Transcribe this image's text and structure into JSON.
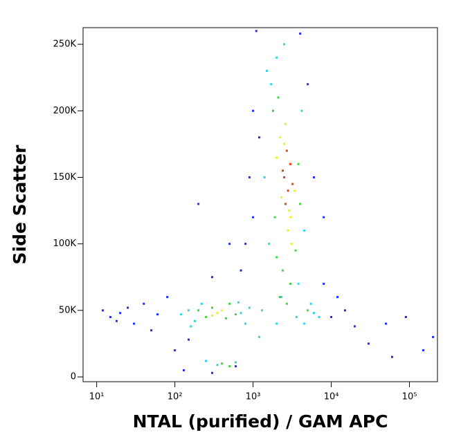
{
  "chart_data": {
    "type": "scatter",
    "x_label": "NTAL (purified) / GAM APC",
    "y_label": "Side Scatter",
    "xscale": "log",
    "xlim": [
      6.7,
      228000
    ],
    "xticks": [
      {
        "value": 10,
        "label": "10¹"
      },
      {
        "value": 100,
        "label": "10²"
      },
      {
        "value": 1000,
        "label": "10³"
      },
      {
        "value": 10000,
        "label": "10⁴"
      },
      {
        "value": 100000,
        "label": "10⁵"
      }
    ],
    "ylim": [
      -3600,
      262500
    ],
    "yticks": [
      0,
      {
        "value": 50000,
        "label": "50K"
      },
      {
        "value": 100000,
        "label": "100K"
      },
      {
        "value": 150000,
        "label": "150K"
      },
      {
        "value": 200000,
        "label": "200K"
      },
      {
        "value": 250000,
        "label": "250K"
      }
    ],
    "series": [
      {
        "color": "#1a2cff",
        "x": [
          15,
          20,
          25,
          30,
          12,
          18,
          40,
          60,
          50,
          80,
          100,
          130,
          300,
          700,
          1000,
          1200,
          900,
          10000,
          15000,
          20000,
          12000,
          8000,
          30000,
          50000,
          90000,
          150000,
          200000,
          1100,
          1000,
          800,
          500,
          200,
          6000,
          8000,
          5000,
          600,
          300,
          150,
          60000,
          4000
        ],
        "y": [
          45000,
          48000,
          52000,
          40000,
          50000,
          42000,
          55000,
          47000,
          35000,
          60000,
          20000,
          5000,
          75000,
          80000,
          120000,
          180000,
          150000,
          45000,
          50000,
          38000,
          60000,
          70000,
          25000,
          40000,
          45000,
          20000,
          30000,
          260000,
          200000,
          100000,
          100000,
          130000,
          150000,
          120000,
          220000,
          8000,
          3000,
          28000,
          15000,
          258000
        ]
      },
      {
        "color": "#2fd3ea",
        "x": [
          1500,
          1700,
          2000,
          4200,
          4500,
          1600,
          3800,
          2300,
          2000,
          3600,
          1400,
          150,
          180,
          220,
          700,
          800,
          650,
          120,
          160,
          900,
          4500,
          6000,
          5500,
          7000,
          250,
          350,
          600,
          1200,
          1300,
          2500
        ],
        "y": [
          230000,
          220000,
          240000,
          200000,
          110000,
          100000,
          70000,
          60000,
          40000,
          45000,
          150000,
          50000,
          42000,
          55000,
          48000,
          40000,
          56000,
          47000,
          38000,
          52000,
          40000,
          48000,
          55000,
          45000,
          12000,
          9000,
          11000,
          30000,
          50000,
          250000
        ]
      },
      {
        "color": "#3cd63c",
        "x": [
          1800,
          2000,
          2400,
          3500,
          3800,
          2100,
          1900,
          4000,
          250,
          300,
          450,
          500,
          200,
          600,
          2200,
          2700,
          3000,
          400,
          500,
          5000
        ],
        "y": [
          200000,
          90000,
          80000,
          95000,
          160000,
          210000,
          120000,
          130000,
          45000,
          52000,
          44000,
          55000,
          50000,
          47000,
          60000,
          55000,
          70000,
          10000,
          8000,
          50000
        ]
      },
      {
        "color": "#f0f020",
        "x": [
          2200,
          2600,
          3000,
          3400,
          2800,
          2000,
          2500,
          3100,
          350,
          400,
          300,
          2300,
          2900
        ],
        "y": [
          180000,
          190000,
          120000,
          140000,
          110000,
          165000,
          175000,
          100000,
          48000,
          50000,
          46000,
          135000,
          125000
        ]
      },
      {
        "color": "#ee3a10",
        "x": [
          2500,
          2800,
          3000,
          2600,
          2400,
          3200,
          2700
        ],
        "y": [
          150000,
          140000,
          160000,
          130000,
          155000,
          145000,
          170000
        ]
      }
    ]
  }
}
